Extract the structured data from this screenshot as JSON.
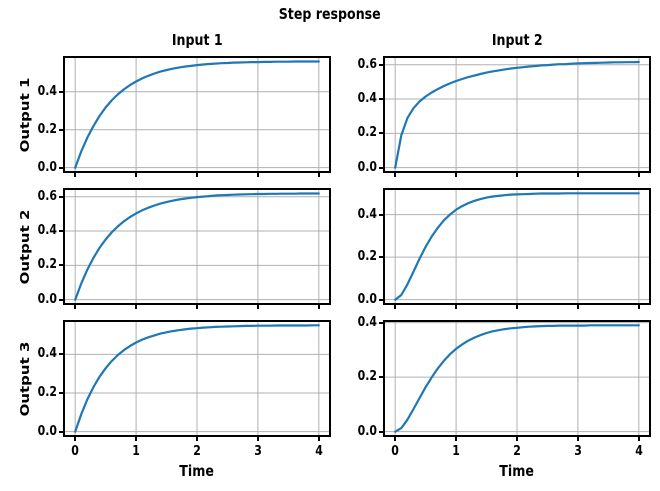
{
  "chart_data": {
    "type": "line",
    "title": "Step response",
    "xlabel": "Time",
    "grid": true,
    "legend_position": "none",
    "line_color": "#1f77b4",
    "grid_color": "#b0b0b0",
    "spine_color": "#000000",
    "xlim": [
      -0.2,
      4.2
    ],
    "x_ticks": [
      0,
      1,
      2,
      3,
      4
    ],
    "col_titles": [
      "Input 1",
      "Input 2"
    ],
    "row_labels": [
      "Output 1",
      "Output 2",
      "Output 3"
    ],
    "x": [
      0,
      0.1,
      0.2,
      0.3,
      0.4,
      0.5,
      0.6,
      0.7,
      0.8,
      0.9,
      1,
      1.1,
      1.2,
      1.3,
      1.4,
      1.5,
      1.6,
      1.7,
      1.8,
      1.9,
      2,
      2.1,
      2.2,
      2.3,
      2.4,
      2.5,
      2.6,
      2.7,
      2.8,
      2.9,
      3,
      3.1,
      3.2,
      3.3,
      3.4,
      3.5,
      3.6,
      3.7,
      3.8,
      3.9,
      4
    ],
    "subplots": [
      {
        "row": 0,
        "col": 0,
        "title": "Input 1",
        "ylabel": "Output 1",
        "steady_state": 0.56,
        "ylim": [
          -0.028,
          0.588
        ],
        "yticks": [
          0.0,
          0.2,
          0.4
        ],
        "y": [
          0,
          0.086,
          0.159,
          0.22,
          0.272,
          0.317,
          0.354,
          0.386,
          0.412,
          0.435,
          0.454,
          0.47,
          0.484,
          0.496,
          0.506,
          0.514,
          0.521,
          0.527,
          0.532,
          0.536,
          0.54,
          0.543,
          0.546,
          0.548,
          0.55,
          0.551,
          0.553,
          0.554,
          0.555,
          0.556,
          0.556,
          0.557,
          0.557,
          0.558,
          0.558,
          0.558,
          0.559,
          0.559,
          0.559,
          0.559,
          0.559
        ]
      },
      {
        "row": 0,
        "col": 1,
        "title": "Input 2",
        "ylabel": null,
        "steady_state": 0.62,
        "ylim": [
          -0.031,
          0.651
        ],
        "yticks": [
          0.0,
          0.2,
          0.4,
          0.6
        ],
        "y": [
          0,
          0.189,
          0.289,
          0.347,
          0.386,
          0.415,
          0.438,
          0.458,
          0.476,
          0.491,
          0.505,
          0.517,
          0.528,
          0.537,
          0.546,
          0.554,
          0.561,
          0.567,
          0.573,
          0.578,
          0.582,
          0.586,
          0.59,
          0.593,
          0.596,
          0.598,
          0.601,
          0.603,
          0.604,
          0.606,
          0.608,
          0.609,
          0.61,
          0.611,
          0.612,
          0.613,
          0.614,
          0.614,
          0.615,
          0.615,
          0.616
        ]
      },
      {
        "row": 1,
        "col": 0,
        "title": null,
        "ylabel": "Output 2",
        "steady_state": 0.62,
        "ylim": [
          -0.031,
          0.651
        ],
        "yticks": [
          0.0,
          0.2,
          0.4,
          0.6
        ],
        "y": [
          0,
          0.095,
          0.176,
          0.244,
          0.302,
          0.351,
          0.392,
          0.427,
          0.457,
          0.482,
          0.503,
          0.521,
          0.536,
          0.549,
          0.56,
          0.569,
          0.577,
          0.584,
          0.589,
          0.594,
          0.598,
          0.601,
          0.604,
          0.607,
          0.609,
          0.61,
          0.612,
          0.613,
          0.614,
          0.615,
          0.616,
          0.616,
          0.617,
          0.617,
          0.618,
          0.618,
          0.618,
          0.619,
          0.619,
          0.619,
          0.619
        ]
      },
      {
        "row": 1,
        "col": 1,
        "title": null,
        "ylabel": null,
        "steady_state": 0.5,
        "ylim": [
          -0.025,
          0.525
        ],
        "yticks": [
          0.0,
          0.2,
          0.4
        ],
        "y": [
          0,
          0.022,
          0.072,
          0.132,
          0.192,
          0.248,
          0.297,
          0.338,
          0.373,
          0.4,
          0.423,
          0.44,
          0.454,
          0.465,
          0.473,
          0.48,
          0.485,
          0.488,
          0.491,
          0.494,
          0.495,
          0.496,
          0.497,
          0.498,
          0.499,
          0.499,
          0.499,
          0.499,
          0.5,
          0.5,
          0.5,
          0.5,
          0.5,
          0.5,
          0.5,
          0.5,
          0.5,
          0.5,
          0.5,
          0.5,
          0.5
        ]
      },
      {
        "row": 2,
        "col": 0,
        "title": null,
        "ylabel": "Output 3",
        "steady_state": 0.55,
        "ylim": [
          -0.0275,
          0.5775
        ],
        "yticks": [
          0.0,
          0.2,
          0.4
        ],
        "y": [
          0,
          0.091,
          0.168,
          0.231,
          0.284,
          0.328,
          0.365,
          0.396,
          0.422,
          0.443,
          0.461,
          0.476,
          0.488,
          0.498,
          0.507,
          0.514,
          0.52,
          0.525,
          0.529,
          0.533,
          0.535,
          0.538,
          0.54,
          0.542,
          0.543,
          0.544,
          0.545,
          0.546,
          0.547,
          0.547,
          0.548,
          0.548,
          0.548,
          0.549,
          0.549,
          0.549,
          0.549,
          0.549,
          0.549,
          0.55,
          0.55
        ]
      },
      {
        "row": 2,
        "col": 1,
        "title": null,
        "ylabel": null,
        "steady_state": 0.39,
        "ylim": [
          -0.0195,
          0.4095
        ],
        "yticks": [
          0.0,
          0.2,
          0.4
        ],
        "y": [
          0,
          0.013,
          0.044,
          0.083,
          0.123,
          0.163,
          0.199,
          0.232,
          0.26,
          0.284,
          0.304,
          0.32,
          0.334,
          0.345,
          0.354,
          0.362,
          0.368,
          0.372,
          0.376,
          0.379,
          0.381,
          0.383,
          0.385,
          0.386,
          0.387,
          0.388,
          0.388,
          0.389,
          0.389,
          0.389,
          0.389,
          0.389,
          0.39,
          0.39,
          0.39,
          0.39,
          0.39,
          0.39,
          0.39,
          0.39,
          0.39
        ]
      }
    ]
  }
}
